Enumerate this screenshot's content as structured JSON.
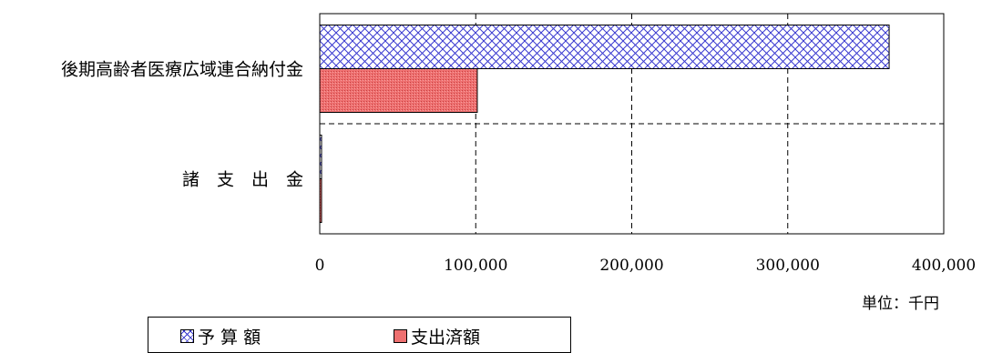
{
  "chart_data": {
    "type": "bar",
    "orientation": "horizontal",
    "categories": [
      "後期高齢者医療広域連合納付金",
      "諸　支　出　金"
    ],
    "series": [
      {
        "name": "予 算 額",
        "values": [
          365000,
          500
        ],
        "color": "#3a3ad0",
        "pattern": "crosshatch"
      },
      {
        "name": "支出済額",
        "values": [
          101000,
          500
        ],
        "color": "#ee7070",
        "pattern": "stipple"
      }
    ],
    "xlim": [
      0,
      400000
    ],
    "xticks": [
      0,
      100000,
      200000,
      300000,
      400000
    ],
    "tick_labels": [
      "0",
      "100,000",
      "200,000",
      "300,000",
      "400,000"
    ],
    "unit_label": "単位：千円",
    "grid": true,
    "legend_position": "bottom"
  },
  "legend": {
    "items": [
      {
        "label": "予 算 額",
        "icon": "crosshatch-blue-swatch"
      },
      {
        "label": "支出済額",
        "icon": "stipple-red-swatch"
      }
    ]
  }
}
